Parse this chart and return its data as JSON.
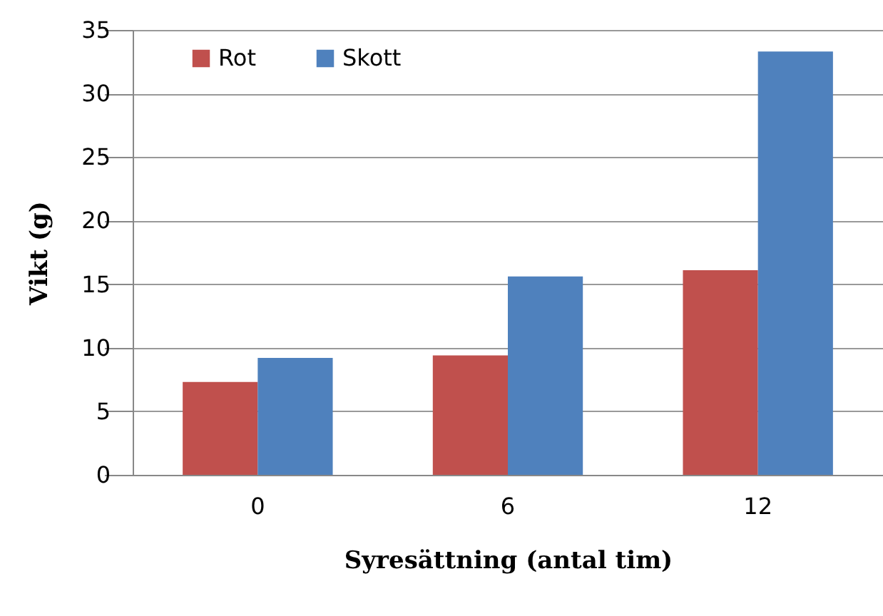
{
  "chart_data": {
    "type": "bar",
    "xlabel": "Syresättning (antal tim)",
    "ylabel": "Vikt (g)",
    "categories": [
      "0",
      "6",
      "12"
    ],
    "series": [
      {
        "name": "Rot",
        "color": "#c0504d",
        "values": [
          7.3,
          9.4,
          16.1
        ]
      },
      {
        "name": "Skott",
        "color": "#4f81bd",
        "values": [
          9.2,
          15.6,
          33.3
        ]
      }
    ],
    "ylim": [
      0,
      35
    ],
    "yticks": [
      0,
      5,
      10,
      15,
      20,
      25,
      30,
      35
    ],
    "grid": "y",
    "legend": "top left"
  }
}
